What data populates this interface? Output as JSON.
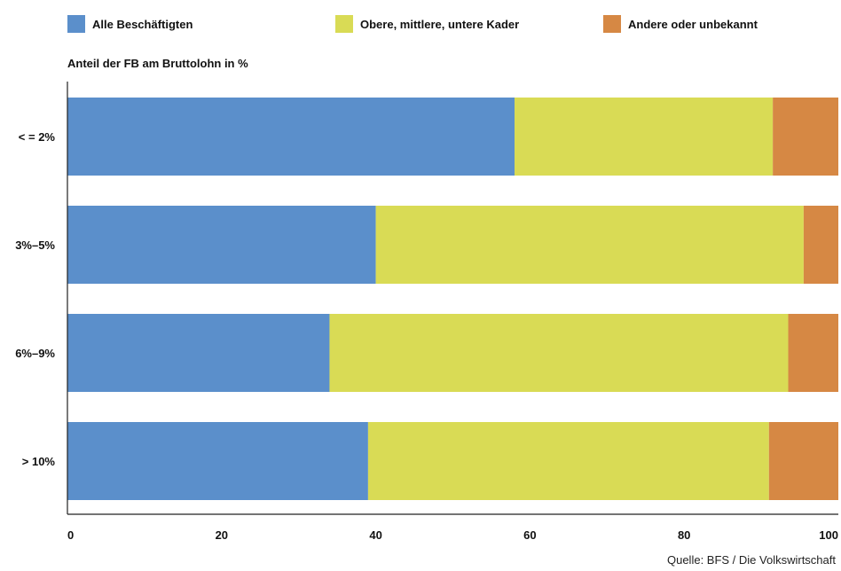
{
  "chart_data": {
    "type": "bar",
    "orientation": "horizontal",
    "stacked": true,
    "ylabel": "Anteil der FB am Bruttolohn in %",
    "xlabel": "",
    "categories": [
      "< = 2%",
      "3%–5%",
      "6%–9%",
      "> 10%"
    ],
    "series": [
      {
        "name": "Alle Beschäftigten",
        "color": "#5B8FCB",
        "values": [
          58,
          40,
          34,
          39
        ]
      },
      {
        "name": "Obere, mittlere, untere Kader",
        "color": "#D9DB55",
        "values": [
          33.5,
          55.5,
          59.5,
          52
        ]
      },
      {
        "name": "Andere oder unbekannt",
        "color": "#D68844",
        "values": [
          8.5,
          4.5,
          6.5,
          9
        ]
      }
    ],
    "xlim": [
      0,
      100
    ],
    "xticks": [
      0,
      20,
      40,
      60,
      80,
      100
    ],
    "legend_position": "top",
    "grid": false,
    "source": "Quelle: BFS / Die Volkswirtschaft"
  }
}
